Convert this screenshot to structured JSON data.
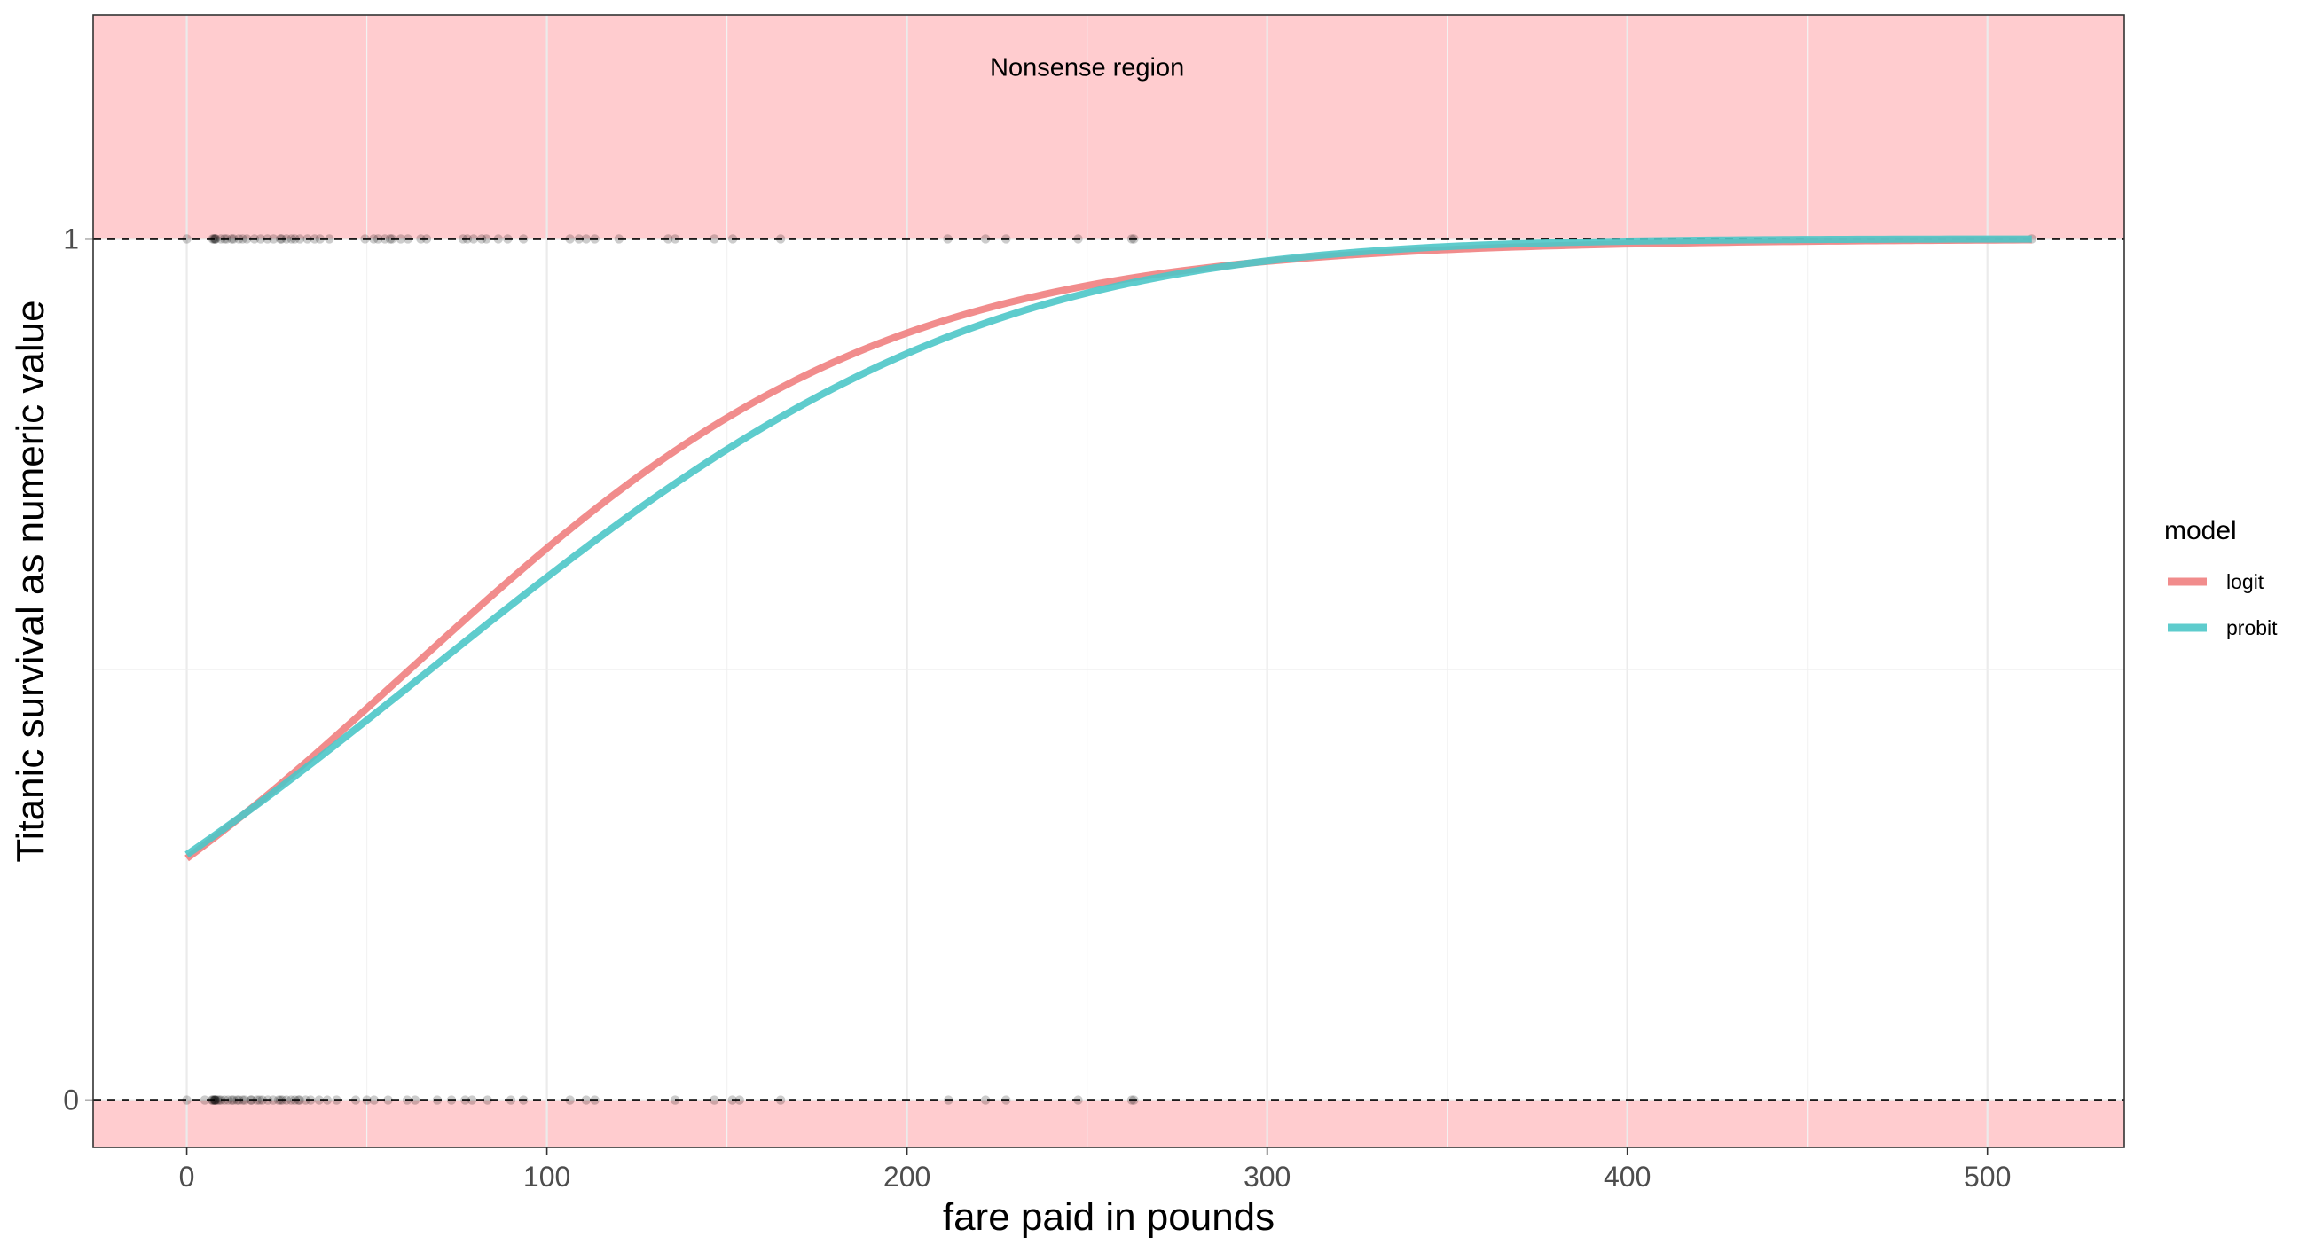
{
  "chart_data": {
    "type": "line",
    "xlabel": "fare paid in pounds",
    "ylabel": "Titanic survival as numeric value",
    "xlim": [
      -26,
      538
    ],
    "ylim": [
      -0.055,
      1.26
    ],
    "x_ticks": [
      0,
      100,
      200,
      300,
      400,
      500
    ],
    "y_ticks": [
      0,
      1
    ],
    "grid": true,
    "theme": "bw",
    "annotation": {
      "text": "Nonsense region",
      "x": 250,
      "y": 1.2
    },
    "nonsense_bands": [
      {
        "from": 1.0,
        "to": 1.26,
        "color": "#ffcccf"
      },
      {
        "from": -0.055,
        "to": 0.0,
        "color": "#ffcccf"
      }
    ],
    "reference_lines": [
      0,
      1
    ],
    "legend": {
      "title": "model",
      "position": "right"
    },
    "series": [
      {
        "name": "logit",
        "color": "#f08080",
        "model": {
          "link": "logit",
          "intercept": -0.941,
          "slope": 0.0152
        },
        "x_range": [
          0,
          512.33
        ]
      },
      {
        "name": "probit",
        "color": "#4cc6c8",
        "model": {
          "link": "probit",
          "intercept": -0.568,
          "slope": 0.0084
        },
        "x_range": [
          0,
          512.33
        ]
      }
    ],
    "points_survived_0": [
      0,
      5,
      7,
      7.2,
      7.5,
      7.75,
      7.8,
      7.9,
      8.05,
      8.5,
      9,
      9.5,
      10.5,
      11.5,
      12.5,
      13,
      14,
      14.5,
      15.5,
      16.1,
      17.8,
      18,
      19.5,
      20.2,
      21,
      22.5,
      24,
      25.5,
      26,
      26.55,
      27.7,
      29,
      30,
      31,
      31.3,
      33,
      34.4,
      36.75,
      39,
      41.6,
      46.9,
      50,
      52,
      55.9,
      61.2,
      63.4,
      69.55,
      73.5,
      77.3,
      79.2,
      83.5,
      90,
      93.5,
      106.4,
      110.9,
      113.3,
      135.6,
      146.5,
      151.5,
      153.5,
      164.9,
      211.5,
      221.8,
      227.5,
      247.5,
      262.4,
      263
    ],
    "points_survived_1": [
      0,
      7.2,
      7.5,
      7.75,
      7.9,
      8.05,
      9.5,
      10.5,
      11.1,
      12.5,
      13,
      14.5,
      15.5,
      16.7,
      18.8,
      20.5,
      22.4,
      24.1,
      26,
      26.3,
      27.7,
      29.1,
      30,
      31.4,
      33.5,
      35.5,
      37,
      39.6,
      49.5,
      51.9,
      53.1,
      55,
      56.5,
      57,
      59.4,
      61.4,
      65,
      66.6,
      76.7,
      77.9,
      79.65,
      81.9,
      83.2,
      86.5,
      89.1,
      93.5,
      106.4,
      108.9,
      110.9,
      113.3,
      120,
      133.65,
      135.6,
      146.5,
      151.6,
      164.9,
      211.3,
      221.8,
      227.5,
      247.5,
      262.4,
      263,
      512.3
    ]
  }
}
